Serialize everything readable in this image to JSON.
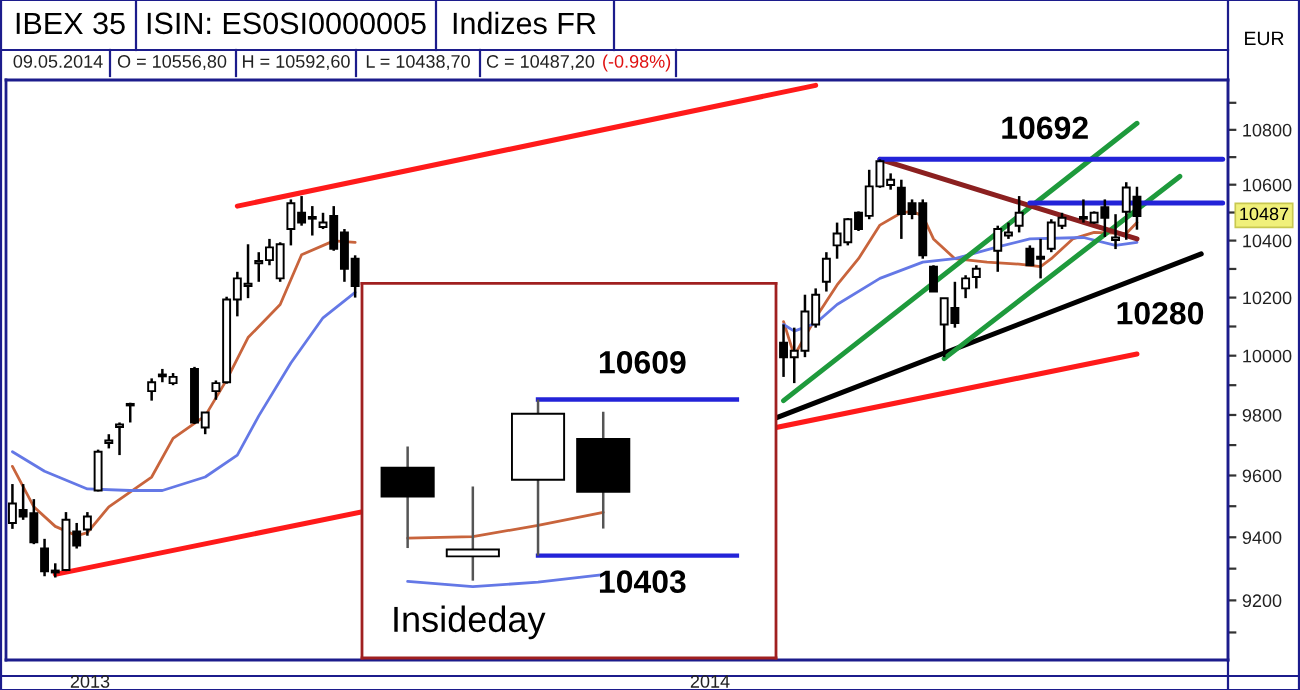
{
  "chart_data": [
    {
      "type": "candlestick",
      "title": "IBEX 35",
      "ylabel": "EUR",
      "log": true,
      "tick_labels": "y",
      "categories": [
        null,
        null,
        null,
        null,
        null,
        null,
        null,
        null,
        null,
        null,
        null,
        null,
        null,
        null,
        null,
        null,
        null,
        null,
        null,
        null,
        null,
        null,
        null,
        null,
        null,
        null,
        null,
        null,
        null,
        null,
        null,
        null,
        null,
        null,
        null,
        null,
        null,
        null,
        null,
        null,
        null,
        null,
        null,
        null,
        null,
        null,
        null,
        null,
        null,
        null,
        null,
        null,
        null,
        null,
        null,
        null,
        null,
        null,
        null,
        null,
        null,
        null,
        null,
        null,
        null,
        null,
        null,
        null,
        null,
        null,
        null,
        null,
        null,
        null,
        null,
        null,
        null,
        null,
        null,
        null,
        null,
        null,
        null,
        null,
        null,
        null,
        null,
        null,
        null,
        null,
        null,
        null,
        null,
        null,
        null,
        null,
        null,
        null,
        null,
        null,
        null,
        null,
        null,
        null,
        null,
        null,
        null,
        null,
        null,
        null,
        null,
        null,
        null,
        null
      ],
      "ohlc": [
        [
          9446,
          9572,
          9427,
          9509
        ],
        [
          9488,
          9572,
          9456,
          9467
        ],
        [
          9477,
          9523,
          9378,
          9384
        ],
        [
          9364,
          9395,
          9276,
          9292
        ],
        [
          9294,
          9317,
          9272,
          9288
        ],
        [
          9296,
          9481,
          9292,
          9456
        ],
        [
          9419,
          9446,
          9364,
          9374
        ],
        [
          9425,
          9481,
          9405,
          9467
        ],
        [
          9551,
          9685,
          9548,
          9678
        ],
        [
          9707,
          9736,
          9689,
          9715
        ],
        [
          9760,
          9775,
          9667,
          9768
        ],
        [
          9832,
          9841,
          9775,
          9837
        ],
        null,
        [
          9880,
          9923,
          9848,
          9910
        ],
        [
          9930,
          9955,
          9910,
          9936
        ],
        [
          9907,
          9941,
          9900,
          9928
        ],
        null,
        [
          9955,
          9962,
          9770,
          9775
        ],
        [
          9758,
          9810,
          9736,
          9808
        ],
        [
          9880,
          9916,
          9851,
          9907
        ],
        [
          9910,
          10203,
          9905,
          10193
        ],
        [
          10193,
          10290,
          10135,
          10267
        ],
        [
          10240,
          10387,
          10198,
          10248
        ],
        [
          10320,
          10359,
          10255,
          10328
        ],
        [
          10331,
          10406,
          10313,
          10376
        ],
        [
          10267,
          10394,
          10255,
          10387
        ],
        [
          10441,
          10547,
          10383,
          10533
        ],
        [
          10499,
          10559,
          10453,
          10464
        ],
        [
          10478,
          10523,
          10418,
          10484
        ],
        [
          10448,
          10499,
          10441,
          10464
        ],
        [
          10488,
          10523,
          10364,
          10371
        ],
        [
          10429,
          10441,
          10255,
          10301
        ],
        [
          10336,
          10348,
          10200,
          10240
        ],
        null,
        null,
        null,
        null,
        null,
        null,
        null,
        null,
        null,
        null,
        null,
        null,
        null,
        null,
        null,
        null,
        null,
        null,
        null,
        null,
        null,
        null,
        null,
        null,
        null,
        null,
        null,
        null,
        null,
        null,
        null,
        null,
        null,
        null,
        null,
        null,
        null,
        null,
        null,
        [
          10044,
          10107,
          9928,
          9995
        ],
        [
          9995,
          10096,
          9907,
          10017
        ],
        [
          10017,
          10210,
          9995,
          10152
        ],
        [
          10107,
          10232,
          10096,
          10210
        ],
        [
          10255,
          10359,
          10221,
          10336
        ],
        [
          10383,
          10464,
          10336,
          10425
        ],
        [
          10394,
          10480,
          10383,
          10476
        ],
        [
          10499,
          10504,
          10434,
          10441
        ],
        [
          10488,
          10654,
          10476,
          10594
        ],
        [
          10594,
          10692,
          10589,
          10685
        ],
        [
          10599,
          10641,
          10582,
          10618
        ],
        [
          10589,
          10618,
          10406,
          10495
        ],
        [
          10533,
          10547,
          10476,
          10495
        ],
        [
          10533,
          10547,
          10336,
          10348
        ],
        [
          10308,
          10313,
          10221,
          10221
        ],
        [
          10107,
          10198,
          9995,
          10198
        ],
        [
          10164,
          10255,
          10096,
          10112
        ],
        [
          10232,
          10278,
          10198,
          10267
        ],
        [
          10272,
          10313,
          10232,
          10301
        ],
        null,
        [
          10364,
          10453,
          10290,
          10441
        ],
        [
          10418,
          10464,
          10406,
          10429
        ],
        [
          10453,
          10559,
          10429,
          10499
        ],
        [
          10371,
          10383,
          10313,
          10313
        ],
        [
          10343,
          10406,
          10267,
          10336
        ],
        [
          10371,
          10476,
          10359,
          10464
        ],
        [
          10453,
          10499,
          10441,
          10481
        ],
        null,
        [
          10478,
          10547,
          10464,
          10484
        ],
        [
          10464,
          10504,
          10460,
          10499
        ],
        [
          10519,
          10547,
          10413,
          10481
        ],
        [
          10402,
          10494,
          10370,
          10411
        ],
        [
          10503,
          10609,
          10403,
          10590
        ],
        [
          10556.8,
          10592.6,
          10438.7,
          10487.2
        ],
        null,
        null,
        null,
        null,
        null,
        null,
        null,
        null
      ],
      "series": [
        {
          "type": "line",
          "color": "#c8643c",
          "values": [
            9630,
            null,
            9498,
            null,
            9435,
            null,
            9405,
            9415,
            null,
            9498,
            null,
            null,
            null,
            9595,
            null,
            9722,
            null,
            null,
            9797,
            null,
            9918,
            null,
            10062,
            null,
            null,
            10176,
            null,
            10350,
            null,
            null,
            10399,
            null,
            10394,
            null,
            null,
            null,
            null,
            null,
            null,
            null,
            null,
            null,
            null,
            null,
            null,
            null,
            null,
            null,
            null,
            null,
            null,
            null,
            null,
            null,
            null,
            null,
            null,
            null,
            null,
            null,
            null,
            null,
            null,
            null,
            null,
            null,
            null,
            null,
            null,
            null,
            null,
            null,
            10117,
            10000,
            null,
            10130,
            null,
            10244,
            null,
            10336,
            null,
            10455,
            null,
            10499,
            10504,
            10488,
            10406,
            null,
            10336,
            null,
            null,
            10324,
            null,
            null,
            10317,
            null,
            10308,
            10336,
            null,
            10406,
            null,
            10429,
            null,
            null,
            10425,
            10464,
            null,
            null,
            null,
            null,
            null,
            null,
            null,
            null
          ]
        },
        {
          "type": "line",
          "color": "#6478e6",
          "values": [
            9678,
            null,
            null,
            9614,
            null,
            null,
            null,
            9556,
            null,
            null,
            null,
            9551,
            null,
            null,
            9551,
            null,
            null,
            null,
            9595,
            null,
            null,
            9667,
            null,
            9797,
            null,
            null,
            9975,
            null,
            null,
            10130,
            null,
            null,
            10218,
            null,
            null,
            null,
            null,
            null,
            null,
            null,
            null,
            null,
            null,
            null,
            null,
            null,
            null,
            null,
            null,
            null,
            null,
            null,
            null,
            null,
            null,
            null,
            null,
            null,
            null,
            null,
            null,
            null,
            null,
            null,
            null,
            null,
            null,
            null,
            null,
            null,
            null,
            null,
            10107,
            10084,
            null,
            10111,
            null,
            10176,
            null,
            null,
            null,
            10267,
            null,
            null,
            null,
            10324,
            null,
            null,
            10336,
            null,
            null,
            null,
            10378,
            null,
            null,
            10406,
            null,
            null,
            null,
            null,
            10411,
            null,
            null,
            10383,
            null,
            10394,
            null,
            null,
            null,
            null,
            null,
            null,
            null,
            null
          ]
        },
        {
          "type": "line",
          "color": "#ff1a1a",
          "values": [
            null,
            null,
            null,
            null,
            null,
            null,
            null,
            null,
            null,
            null,
            null,
            null,
            null,
            null,
            null,
            null,
            null,
            null,
            null,
            null,
            null,
            10523,
            null,
            null,
            null,
            null,
            null,
            null,
            null,
            null,
            null,
            null,
            null,
            null,
            null,
            null,
            null,
            null,
            null,
            null,
            null,
            null,
            null,
            null,
            null,
            null,
            null,
            null,
            null,
            null,
            null,
            null,
            null,
            null,
            null,
            null,
            null,
            null,
            null,
            null,
            null,
            null,
            null,
            null,
            null,
            null,
            null,
            null,
            null,
            null,
            null,
            null,
            null,
            null,
            null,
            10965,
            null,
            null,
            null,
            null,
            null,
            null,
            null,
            null,
            null,
            null,
            null,
            null,
            null,
            null,
            null,
            null,
            null,
            null,
            null,
            null,
            null,
            null,
            null,
            null,
            null,
            null,
            null,
            null,
            null,
            null,
            null,
            null,
            null,
            null,
            null,
            null,
            null,
            null
          ]
        },
        {
          "type": "line",
          "color": "#ff1a1a",
          "values": [
            null,
            null,
            null,
            null,
            9282,
            null,
            null,
            null,
            null,
            null,
            null,
            null,
            null,
            null,
            null,
            null,
            null,
            null,
            null,
            null,
            null,
            null,
            null,
            null,
            null,
            null,
            null,
            null,
            null,
            null,
            null,
            null,
            null,
            null,
            null,
            null,
            null,
            null,
            null,
            null,
            null,
            null,
            null,
            null,
            null,
            null,
            null,
            null,
            null,
            null,
            null,
            null,
            null,
            null,
            null,
            null,
            null,
            null,
            null,
            null,
            null,
            null,
            null,
            null,
            null,
            null,
            null,
            null,
            null,
            null,
            null,
            null,
            null,
            null,
            null,
            null,
            null,
            null,
            null,
            null,
            null,
            null,
            null,
            null,
            null,
            null,
            null,
            null,
            null,
            null,
            null,
            null,
            null,
            null,
            null,
            null,
            null,
            null,
            null,
            null,
            null,
            null,
            null,
            null,
            null,
            10006,
            null,
            null,
            null,
            null,
            null,
            null,
            null,
            null
          ]
        },
        {
          "type": "line",
          "color": "#000000",
          "values": [
            null,
            null,
            null,
            null,
            null,
            null,
            null,
            null,
            null,
            null,
            null,
            null,
            null,
            null,
            null,
            null,
            null,
            null,
            null,
            null,
            null,
            null,
            null,
            null,
            null,
            null,
            null,
            null,
            null,
            null,
            null,
            null,
            null,
            null,
            null,
            null,
            null,
            null,
            null,
            null,
            null,
            null,
            null,
            null,
            null,
            null,
            null,
            null,
            null,
            null,
            null,
            null,
            null,
            null,
            null,
            null,
            null,
            null,
            null,
            null,
            null,
            null,
            null,
            null,
            null,
            null,
            null,
            null,
            null,
            null,
            null,
            9786,
            null,
            null,
            null,
            null,
            null,
            null,
            null,
            null,
            null,
            null,
            null,
            null,
            null,
            null,
            null,
            null,
            null,
            null,
            null,
            null,
            null,
            null,
            null,
            null,
            null,
            null,
            null,
            null,
            null,
            null,
            null,
            null,
            null,
            null,
            null,
            null,
            null,
            null,
            null,
            10353,
            null,
            null
          ]
        },
        {
          "type": "line",
          "color": "#1e9a3c",
          "values": [
            null,
            null,
            null,
            null,
            null,
            null,
            null,
            null,
            null,
            null,
            null,
            null,
            null,
            null,
            null,
            null,
            null,
            null,
            null,
            null,
            null,
            null,
            null,
            null,
            null,
            null,
            null,
            null,
            null,
            null,
            null,
            null,
            null,
            null,
            null,
            null,
            null,
            null,
            null,
            null,
            null,
            null,
            null,
            null,
            null,
            null,
            null,
            null,
            null,
            null,
            null,
            null,
            null,
            null,
            null,
            null,
            null,
            null,
            null,
            null,
            null,
            null,
            null,
            null,
            null,
            null,
            null,
            null,
            null,
            null,
            null,
            null,
            9848,
            null,
            null,
            null,
            null,
            null,
            null,
            null,
            null,
            null,
            null,
            null,
            null,
            null,
            null,
            null,
            null,
            null,
            null,
            null,
            null,
            null,
            null,
            null,
            null,
            null,
            null,
            null,
            null,
            null,
            null,
            null,
            null,
            10824,
            null,
            null,
            null,
            null,
            null,
            null,
            null,
            null
          ]
        },
        {
          "type": "line",
          "color": "#1e9a3c",
          "values": [
            null,
            null,
            null,
            null,
            null,
            null,
            null,
            null,
            null,
            null,
            null,
            null,
            null,
            null,
            null,
            null,
            null,
            null,
            null,
            null,
            null,
            null,
            null,
            null,
            null,
            null,
            null,
            null,
            null,
            null,
            null,
            null,
            null,
            null,
            null,
            null,
            null,
            null,
            null,
            null,
            null,
            null,
            null,
            null,
            null,
            null,
            null,
            null,
            null,
            null,
            null,
            null,
            null,
            null,
            null,
            null,
            null,
            null,
            null,
            null,
            null,
            null,
            null,
            null,
            null,
            null,
            null,
            null,
            null,
            null,
            null,
            null,
            null,
            null,
            null,
            null,
            null,
            null,
            null,
            null,
            null,
            null,
            null,
            null,
            null,
            null,
            null,
            9990,
            null,
            null,
            null,
            null,
            null,
            null,
            null,
            null,
            null,
            null,
            null,
            null,
            null,
            null,
            null,
            null,
            null,
            null,
            null,
            null,
            null,
            10630,
            null,
            null,
            null,
            null
          ]
        },
        {
          "type": "line",
          "color": "#8b2020",
          "values": [
            null,
            null,
            null,
            null,
            null,
            null,
            null,
            null,
            null,
            null,
            null,
            null,
            null,
            null,
            null,
            null,
            null,
            null,
            null,
            null,
            null,
            null,
            null,
            null,
            null,
            null,
            null,
            null,
            null,
            null,
            null,
            null,
            null,
            null,
            null,
            null,
            null,
            null,
            null,
            null,
            null,
            null,
            null,
            null,
            null,
            null,
            null,
            null,
            null,
            null,
            null,
            null,
            null,
            null,
            null,
            null,
            null,
            null,
            null,
            null,
            null,
            null,
            null,
            null,
            null,
            null,
            null,
            null,
            null,
            null,
            null,
            null,
            null,
            null,
            null,
            null,
            null,
            null,
            null,
            null,
            null,
            10692,
            null,
            null,
            null,
            null,
            null,
            null,
            null,
            null,
            null,
            null,
            null,
            null,
            null,
            null,
            null,
            null,
            null,
            null,
            null,
            null,
            null,
            null,
            null,
            10406,
            null,
            null,
            null,
            null,
            null,
            null,
            null,
            null
          ]
        },
        {
          "type": "line",
          "color": "#2323d8",
          "values": [
            null,
            null,
            null,
            null,
            null,
            null,
            null,
            null,
            null,
            null,
            null,
            null,
            null,
            null,
            null,
            null,
            null,
            null,
            null,
            null,
            null,
            null,
            null,
            null,
            null,
            null,
            null,
            null,
            null,
            null,
            null,
            null,
            null,
            null,
            null,
            null,
            null,
            null,
            null,
            null,
            null,
            null,
            null,
            null,
            null,
            null,
            null,
            null,
            null,
            null,
            null,
            null,
            null,
            null,
            null,
            null,
            null,
            null,
            null,
            null,
            null,
            null,
            null,
            null,
            null,
            null,
            null,
            null,
            null,
            null,
            null,
            null,
            null,
            null,
            null,
            null,
            null,
            null,
            null,
            null,
            null,
            10692,
            null,
            null,
            null,
            null,
            null,
            null,
            null,
            null,
            null,
            null,
            null,
            null,
            null,
            null,
            null,
            null,
            null,
            null,
            null,
            null,
            null,
            null,
            null,
            null,
            null,
            null,
            null,
            null,
            null,
            null,
            null,
            10692
          ]
        },
        {
          "type": "line",
          "color": "#2323d8",
          "values": [
            null,
            null,
            null,
            null,
            null,
            null,
            null,
            null,
            null,
            null,
            null,
            null,
            null,
            null,
            null,
            null,
            null,
            null,
            null,
            null,
            null,
            null,
            null,
            null,
            null,
            null,
            null,
            null,
            null,
            null,
            null,
            null,
            null,
            null,
            null,
            null,
            null,
            null,
            null,
            null,
            null,
            null,
            null,
            null,
            null,
            null,
            null,
            null,
            null,
            null,
            null,
            null,
            null,
            null,
            null,
            null,
            null,
            null,
            null,
            null,
            null,
            null,
            null,
            null,
            null,
            null,
            null,
            null,
            null,
            null,
            null,
            null,
            null,
            null,
            null,
            null,
            null,
            null,
            null,
            null,
            null,
            null,
            null,
            null,
            null,
            null,
            null,
            null,
            null,
            null,
            null,
            null,
            null,
            null,
            null,
            10534,
            null,
            null,
            null,
            null,
            null,
            null,
            null,
            null,
            null,
            null,
            null,
            null,
            null,
            null,
            null,
            null,
            null,
            10534
          ]
        }
      ],
      "ylim": [
        9015,
        10985
      ],
      "yticks": [
        {
          "value": 9100,
          "label": null
        },
        9200,
        {
          "value": 9300,
          "label": null
        },
        9400,
        {
          "value": 9500,
          "label": null
        },
        9600,
        {
          "value": 9700,
          "label": null
        },
        9800,
        {
          "value": 9900,
          "label": null
        },
        10000,
        {
          "value": 10100,
          "label": null
        },
        10200,
        {
          "value": 10300,
          "label": null
        },
        10400,
        {
          "value": 10500,
          "label": null
        },
        10600,
        {
          "value": 10700,
          "label": null
        },
        10800,
        {
          "value": 10900,
          "label": null
        }
      ],
      "annotations": [
        "ISIN: ES0SI0000005",
        "Indizes FR",
        "09.05.2014",
        "O = 10556,80",
        "H = 10592,60",
        "L = 10438,70",
        "C = 10487,20",
        "(-0.98%)",
        {
          "text": "10692",
          "y": 10692
        },
        "10280",
        "10487",
        "2013",
        "2014"
      ]
    },
    {
      "type": "candlestick",
      "tick_labels": false,
      "categories": [
        null,
        null,
        null,
        null,
        null,
        null
      ],
      "ohlc": [
        [
          10519,
          10547,
          10413,
          10481
        ],
        [
          10402,
          10494,
          10370,
          10411
        ],
        [
          10503,
          10609,
          10403,
          10590
        ],
        [
          10556.8,
          10592.6,
          10438.7,
          10487.2
        ],
        null,
        null
      ],
      "series": [
        {
          "type": "line",
          "color": "#c8643c",
          "values": [
            10426,
            10428,
            10443,
            10460,
            null,
            null
          ]
        },
        {
          "type": "line",
          "color": "#6478e6",
          "values": [
            10369,
            10362,
            10368,
            10378,
            null,
            null
          ]
        }
      ],
      "ylim": [
        10268,
        10762
      ],
      "ref_lines": [
        {
          "axis": "y",
          "value": 10609,
          "label": "10609",
          "color": "#2323d8"
        },
        {
          "axis": "y",
          "value": 10403,
          "label": "10403",
          "color": "#2323d8"
        }
      ],
      "annotations": [
        "Insideday"
      ]
    }
  ]
}
